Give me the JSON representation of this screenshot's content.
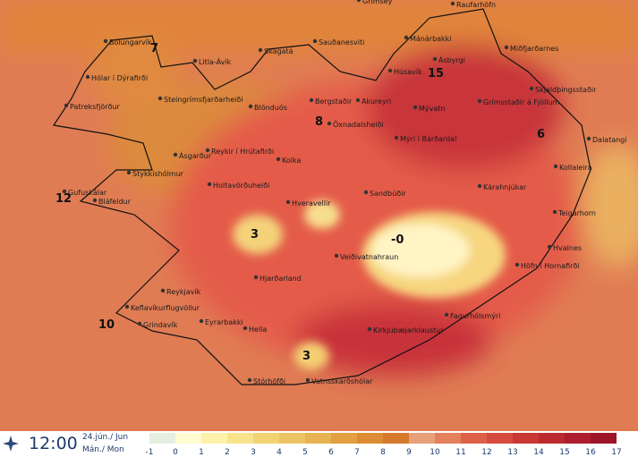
{
  "map": {
    "places": [
      "Grímsey",
      "Raufarhöfn",
      "Bolungarvík",
      "Sauðanesviti",
      "Mánárbakki",
      "Miðfjarðarnes",
      "Skagatá",
      "Litla-Ávík",
      "Ásbyrgi",
      "Húsavík",
      "Hólar í Dýrafirði",
      "Steingrímsfjarðarheiði",
      "Blönduós",
      "Bergstaðir",
      "Akureyri",
      "Mývatn",
      "Grímsstaðir á Fjöllum",
      "Skjaldþingsstaðir",
      "Patreksfjörður",
      "Öxnadalsheiði",
      "Mýri í Bárðardal",
      "Dalatangi",
      "Ásgarður",
      "Reykir í Hrútafirði",
      "Kolka",
      "Kollaleira",
      "Stykkishólmur",
      "Kárahnjúkar",
      "Gufuskálar",
      "Bláfeldur",
      "Holtavörðuheiði",
      "Sandbúðir",
      "Hveravellir",
      "Teigarhorn",
      "Hvalnes",
      "Veiðivatnahraun",
      "Höfn í Hornafirði",
      "Hjarðarland",
      "Reykjavík",
      "Keflavíkurflugvöllur",
      "Fagurhólsmýri",
      "Grindavík",
      "Eyrarbakki",
      "Hella",
      "Kirkjubæjarklaustur",
      "Vatnsskarðshólar",
      "Stórhöfði"
    ],
    "temperatures": [
      7,
      15,
      8,
      6,
      12,
      3,
      {
        "value": 0,
        "label": "-0"
      },
      10,
      3
    ]
  },
  "footer": {
    "time": "12:00",
    "date": "24.jún./ Jun",
    "day": "Mán./ Mon"
  },
  "legend": {
    "labels": [
      -1,
      0,
      1,
      2,
      3,
      4,
      5,
      6,
      7,
      8,
      9,
      10,
      11,
      12,
      13,
      14,
      15,
      16,
      17
    ],
    "colors": [
      "#e4efe0",
      "#fffcd2",
      "#fcf2aa",
      "#f7e38c",
      "#f1d374",
      "#ecc464",
      "#e7b352",
      "#e2a040",
      "#dc8c34",
      "#d67a2c",
      "#e8a07a",
      "#e4805c",
      "#dd6048",
      "#d44a3c",
      "#c93834",
      "#bb2a30",
      "#ac1e2e",
      "#9c1428"
    ]
  }
}
